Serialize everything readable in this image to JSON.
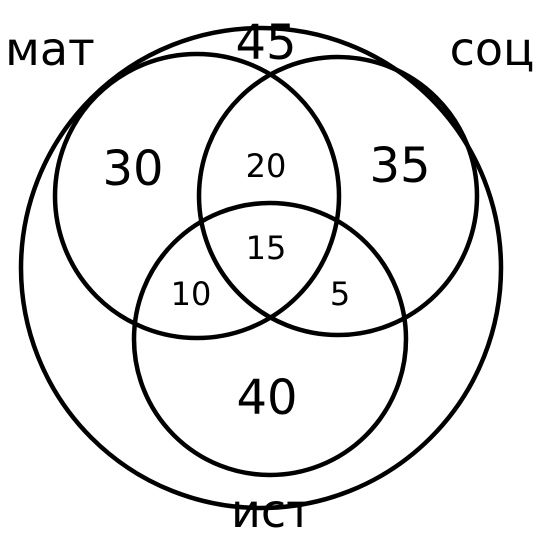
{
  "sets": {
    "math_label": "мат",
    "soc_label": "соц",
    "hist_label": "ист"
  },
  "regions": {
    "outside": "45",
    "math_only": "30",
    "soc_only": "35",
    "hist_only": "40",
    "math_soc": "20",
    "math_hist": "10",
    "soc_hist": "5",
    "all_three": "15"
  }
}
